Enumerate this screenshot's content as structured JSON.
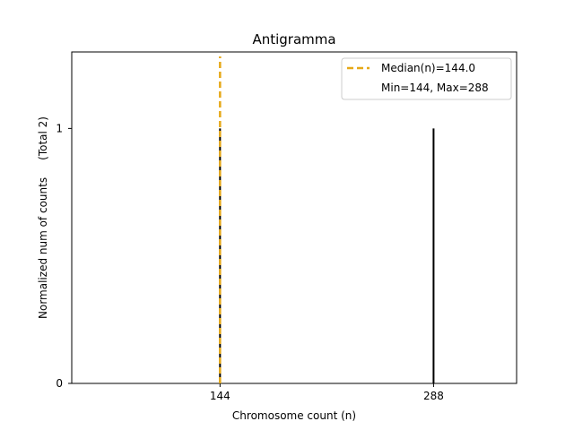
{
  "chart_data": {
    "type": "bar",
    "title": "Antigramma",
    "xlabel": "Chromosome count (n)",
    "ylabel": "Normalized num of counts     (Total 2)",
    "xlim": [
      44,
      344
    ],
    "ylim": [
      0,
      1.3
    ],
    "x_ticks": [
      144,
      288
    ],
    "x_tick_labels": [
      "144",
      "288"
    ],
    "y_ticks": [
      0,
      1
    ],
    "y_tick_labels": [
      "0",
      "1"
    ],
    "series": [
      {
        "x": [
          144,
          288
        ],
        "values": [
          1,
          1
        ],
        "color": "#000000"
      }
    ],
    "median": {
      "value": 144.0,
      "color": "#e6a817",
      "style": "dashed"
    },
    "legend": {
      "position": "top-right",
      "entries": [
        "Median(n)=144.0",
        "Min=144, Max=288"
      ]
    },
    "grid": false
  }
}
